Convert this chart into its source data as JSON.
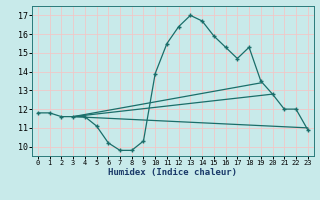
{
  "xlabel": "Humidex (Indice chaleur)",
  "background_color": "#c8eaea",
  "grid_color": "#f0c8c8",
  "line_color": "#1a6e6a",
  "xlim": [
    -0.5,
    23.5
  ],
  "ylim": [
    9.5,
    17.5
  ],
  "yticks": [
    10,
    11,
    12,
    13,
    14,
    15,
    16,
    17
  ],
  "xticks": [
    0,
    1,
    2,
    3,
    4,
    5,
    6,
    7,
    8,
    9,
    10,
    11,
    12,
    13,
    14,
    15,
    16,
    17,
    18,
    19,
    20,
    21,
    22,
    23
  ],
  "main_x": [
    0,
    1,
    2,
    3,
    4,
    5,
    6,
    7,
    8,
    9,
    10,
    11,
    12,
    13,
    14,
    15,
    16,
    17,
    18,
    19,
    20,
    21,
    22,
    23
  ],
  "main_y": [
    11.8,
    11.8,
    11.6,
    11.6,
    11.6,
    11.1,
    10.2,
    9.8,
    9.8,
    10.3,
    13.9,
    15.5,
    16.4,
    17.0,
    16.7,
    15.9,
    15.3,
    14.7,
    15.3,
    13.5,
    12.8,
    12.0,
    12.0,
    10.9
  ],
  "trend_lines": [
    {
      "x": [
        3,
        19
      ],
      "y": [
        11.6,
        13.4
      ]
    },
    {
      "x": [
        3,
        20
      ],
      "y": [
        11.6,
        12.8
      ]
    },
    {
      "x": [
        3,
        23
      ],
      "y": [
        11.6,
        11.0
      ]
    }
  ]
}
